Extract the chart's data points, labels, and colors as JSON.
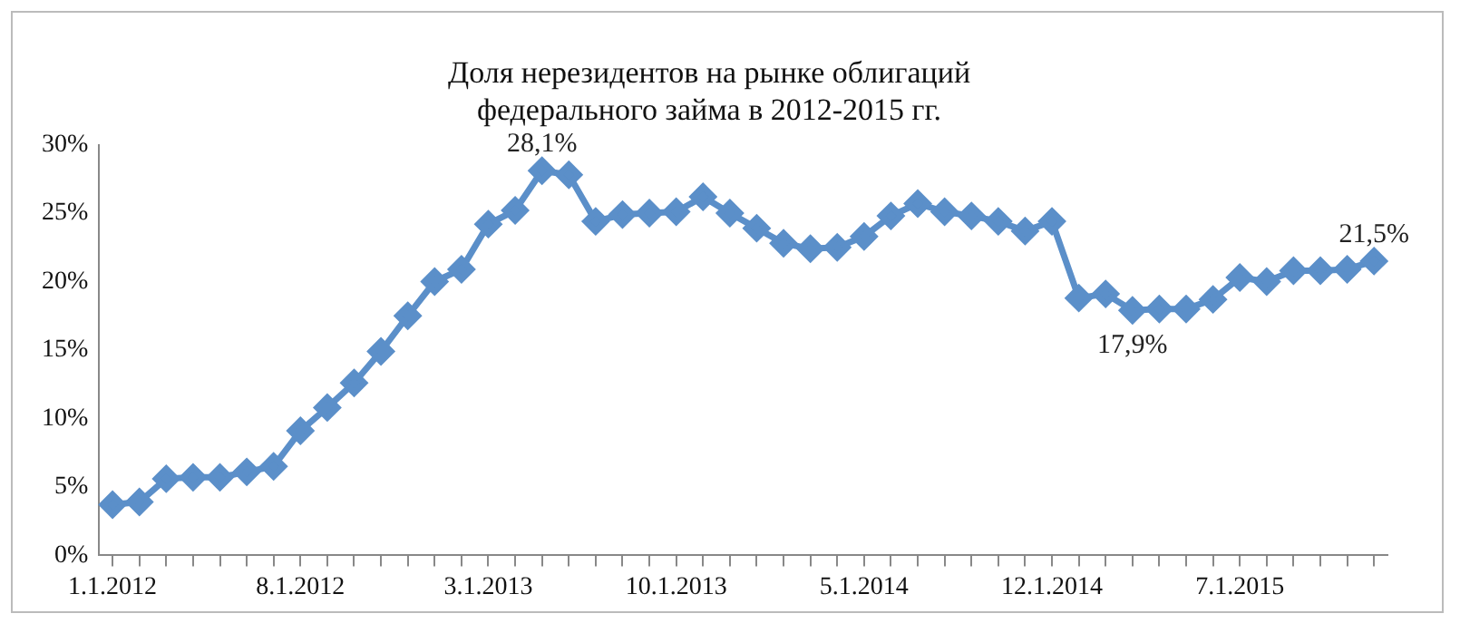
{
  "chart_data": {
    "type": "line",
    "title": "Доля нерезидентов на рынке облигаций\nфедерального займа в 2012-2015 гг.",
    "categories": [
      "1.1.2012",
      null,
      null,
      null,
      null,
      null,
      null,
      "8.1.2012",
      null,
      null,
      null,
      null,
      null,
      null,
      "3.1.2013",
      null,
      null,
      null,
      null,
      null,
      null,
      "10.1.2013",
      null,
      null,
      null,
      null,
      null,
      null,
      "5.1.2014",
      null,
      null,
      null,
      null,
      null,
      null,
      "12.1.2014",
      null,
      null,
      null,
      null,
      null,
      null,
      "7.1.2015",
      null,
      null,
      null,
      null,
      null
    ],
    "series": [
      {
        "color": "#5b8fc9",
        "values": [
          3.7,
          3.9,
          5.6,
          5.7,
          5.7,
          6.1,
          6.5,
          9.1,
          10.8,
          12.6,
          14.9,
          17.5,
          20.0,
          20.9,
          24.2,
          25.2,
          28.1,
          27.8,
          24.4,
          24.9,
          25.0,
          25.1,
          26.2,
          25.0,
          23.9,
          22.8,
          22.4,
          22.5,
          23.3,
          24.8,
          25.7,
          25.1,
          24.8,
          24.4,
          23.7,
          24.4,
          18.8,
          19.1,
          17.9,
          18.0,
          18.0,
          18.7,
          20.3,
          20.0,
          20.8,
          20.8,
          20.9,
          21.5
        ],
        "value_labels": [
          null,
          null,
          null,
          null,
          null,
          null,
          null,
          null,
          null,
          null,
          null,
          null,
          null,
          null,
          null,
          null,
          "28,1%",
          null,
          null,
          null,
          null,
          null,
          null,
          null,
          null,
          null,
          null,
          null,
          null,
          null,
          null,
          null,
          null,
          null,
          null,
          null,
          null,
          null,
          "17,9%",
          null,
          null,
          null,
          null,
          null,
          null,
          null,
          null,
          "21,5%"
        ]
      }
    ],
    "ylim": [
      0,
      30
    ],
    "yticks": [
      {
        "value": 0,
        "label": "0%"
      },
      {
        "value": 5,
        "label": "5%"
      },
      {
        "value": 10,
        "label": "10%"
      },
      {
        "value": 15,
        "label": "15%"
      },
      {
        "value": 20,
        "label": "20%"
      },
      {
        "value": 25,
        "label": "25%"
      },
      {
        "value": 30,
        "label": "30%"
      }
    ],
    "grid": false,
    "legend": false,
    "marker": "diamond",
    "line_style": "solid"
  }
}
